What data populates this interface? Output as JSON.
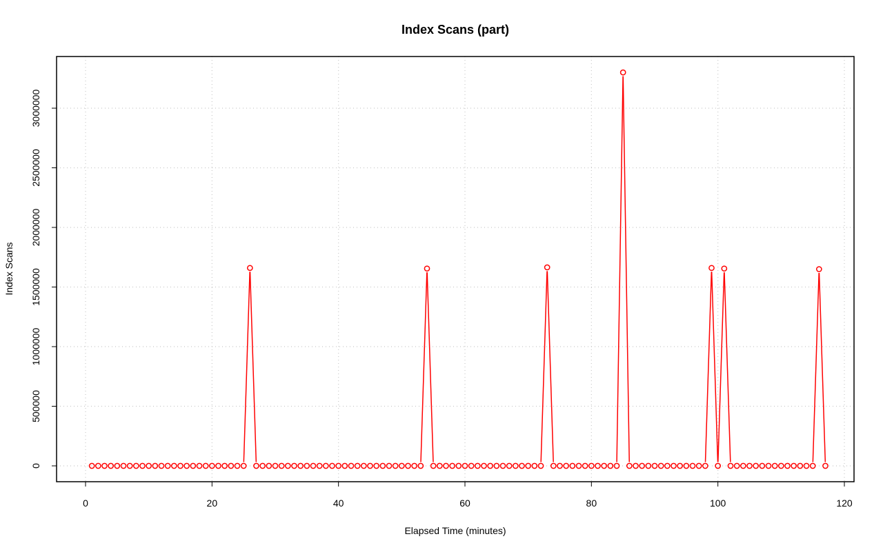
{
  "chart_data": {
    "type": "line",
    "title": "Index Scans (part)",
    "xlabel": "Elapsed Time (minutes)",
    "ylabel": "Index Scans",
    "xlim": [
      0,
      120
    ],
    "ylim": [
      0,
      3300000
    ],
    "x_ticks": [
      0,
      20,
      40,
      60,
      80,
      100,
      120
    ],
    "x_tick_labels": [
      "0",
      "20",
      "40",
      "60",
      "80",
      "100",
      "120"
    ],
    "y_ticks": [
      0,
      500000,
      1000000,
      1500000,
      2000000,
      2500000,
      3000000
    ],
    "y_tick_labels": [
      "0",
      "500000",
      "1000000",
      "1500000",
      "2000000",
      "2500000",
      "3000000"
    ],
    "grid": true,
    "series": [
      {
        "color": "#ff0000",
        "x": [
          1,
          2,
          3,
          4,
          5,
          6,
          7,
          8,
          9,
          10,
          11,
          12,
          13,
          14,
          15,
          16,
          17,
          18,
          19,
          20,
          21,
          22,
          23,
          24,
          25,
          26,
          27,
          28,
          29,
          30,
          31,
          32,
          33,
          34,
          35,
          36,
          37,
          38,
          39,
          40,
          41,
          42,
          43,
          44,
          45,
          46,
          47,
          48,
          49,
          50,
          51,
          52,
          53,
          54,
          55,
          56,
          57,
          58,
          59,
          60,
          61,
          62,
          63,
          64,
          65,
          66,
          67,
          68,
          69,
          70,
          71,
          72,
          73,
          74,
          75,
          76,
          77,
          78,
          79,
          80,
          81,
          82,
          83,
          84,
          85,
          86,
          87,
          88,
          89,
          90,
          91,
          92,
          93,
          94,
          95,
          96,
          97,
          98,
          99,
          100,
          101,
          102,
          103,
          104,
          105,
          106,
          107,
          108,
          109,
          110,
          111,
          112,
          113,
          114,
          115,
          116,
          117
        ],
        "y": [
          0,
          0,
          0,
          0,
          0,
          0,
          0,
          0,
          0,
          0,
          0,
          0,
          0,
          0,
          0,
          0,
          0,
          0,
          0,
          0,
          0,
          0,
          0,
          0,
          0,
          1660000,
          0,
          0,
          0,
          0,
          0,
          0,
          0,
          0,
          0,
          0,
          0,
          0,
          0,
          0,
          0,
          0,
          0,
          0,
          0,
          0,
          0,
          0,
          0,
          0,
          0,
          0,
          0,
          1655000,
          0,
          0,
          0,
          0,
          0,
          0,
          0,
          0,
          0,
          0,
          0,
          0,
          0,
          0,
          0,
          0,
          0,
          0,
          1665000,
          0,
          0,
          0,
          0,
          0,
          0,
          0,
          0,
          0,
          0,
          0,
          3300000,
          0,
          0,
          0,
          0,
          0,
          0,
          0,
          0,
          0,
          0,
          0,
          0,
          0,
          1660000,
          0,
          1655000,
          0,
          0,
          0,
          0,
          0,
          0,
          0,
          0,
          0,
          0,
          0,
          0,
          0,
          0,
          1650000,
          0
        ]
      }
    ]
  }
}
